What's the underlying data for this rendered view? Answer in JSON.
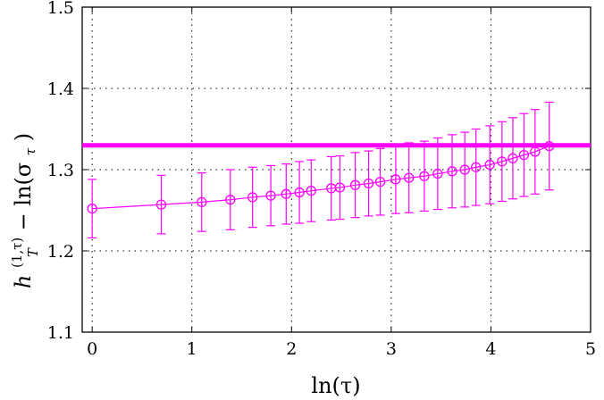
{
  "chart_data": {
    "type": "scatter",
    "title": "",
    "xlabel": "ln(τ)",
    "ylabel": {
      "h_symbol": "h",
      "h_sub": "T",
      "h_sup": "(1,τ)",
      "rest": "− ln(σ",
      "sigma_sub": "τ",
      "close": ")"
    },
    "xlim": [
      -0.1,
      5
    ],
    "ylim": [
      1.1,
      1.5
    ],
    "xticks": [
      0,
      1,
      2,
      3,
      4,
      5
    ],
    "yticks": [
      1.1,
      1.2,
      1.3,
      1.4,
      1.5
    ],
    "xtick_labels": [
      "0",
      "1",
      "2",
      "3",
      "4",
      "5"
    ],
    "ytick_labels": [
      "1.1",
      "1.2",
      "1.3",
      "1.4",
      "1.5"
    ],
    "grid": true,
    "series": [
      {
        "marker": "open-circle",
        "line": "solid",
        "color": "#ff00ff",
        "points": [
          {
            "x": 0.0,
            "y": 1.252,
            "err": 0.036
          },
          {
            "x": 0.693,
            "y": 1.257,
            "err": 0.036
          },
          {
            "x": 1.099,
            "y": 1.26,
            "err": 0.036
          },
          {
            "x": 1.386,
            "y": 1.263,
            "err": 0.037
          },
          {
            "x": 1.609,
            "y": 1.266,
            "err": 0.037
          },
          {
            "x": 1.792,
            "y": 1.268,
            "err": 0.037
          },
          {
            "x": 1.946,
            "y": 1.27,
            "err": 0.037
          },
          {
            "x": 2.079,
            "y": 1.272,
            "err": 0.038
          },
          {
            "x": 2.197,
            "y": 1.274,
            "err": 0.038
          },
          {
            "x": 2.398,
            "y": 1.277,
            "err": 0.039
          },
          {
            "x": 2.485,
            "y": 1.278,
            "err": 0.039
          },
          {
            "x": 2.639,
            "y": 1.281,
            "err": 0.04
          },
          {
            "x": 2.773,
            "y": 1.283,
            "err": 0.04
          },
          {
            "x": 2.89,
            "y": 1.285,
            "err": 0.041
          },
          {
            "x": 3.045,
            "y": 1.288,
            "err": 0.042
          },
          {
            "x": 3.178,
            "y": 1.29,
            "err": 0.043
          },
          {
            "x": 3.332,
            "y": 1.292,
            "err": 0.043
          },
          {
            "x": 3.466,
            "y": 1.295,
            "err": 0.044
          },
          {
            "x": 3.611,
            "y": 1.298,
            "err": 0.045
          },
          {
            "x": 3.738,
            "y": 1.3,
            "err": 0.046
          },
          {
            "x": 3.85,
            "y": 1.303,
            "err": 0.047
          },
          {
            "x": 3.989,
            "y": 1.306,
            "err": 0.048
          },
          {
            "x": 4.111,
            "y": 1.31,
            "err": 0.049
          },
          {
            "x": 4.22,
            "y": 1.314,
            "err": 0.05
          },
          {
            "x": 4.331,
            "y": 1.318,
            "err": 0.051
          },
          {
            "x": 4.443,
            "y": 1.322,
            "err": 0.052
          },
          {
            "x": 4.585,
            "y": 1.329,
            "err": 0.054
          }
        ]
      }
    ],
    "reference_line": {
      "y": 1.33,
      "color": "#ff00ff",
      "style": "thick-horizontal"
    }
  }
}
